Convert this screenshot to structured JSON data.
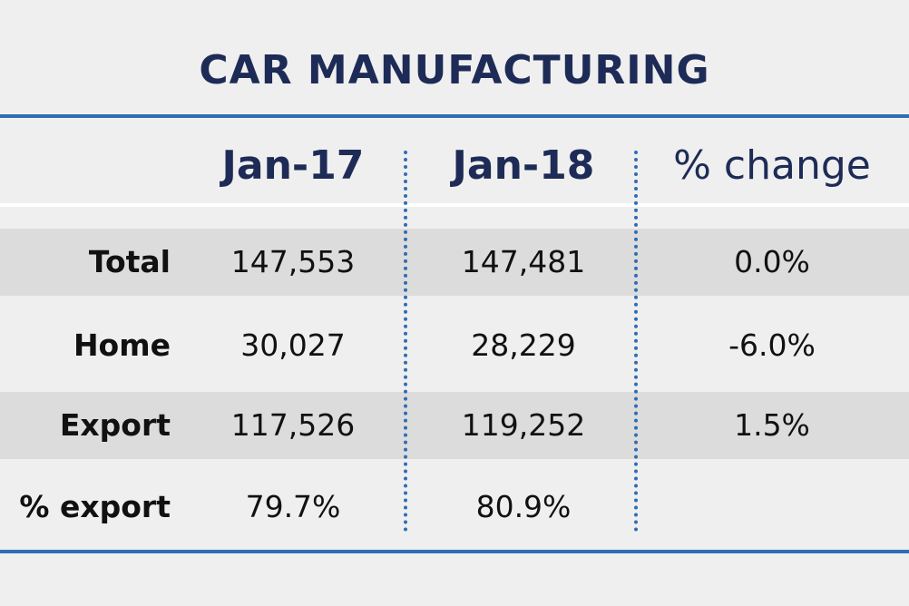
{
  "chart_data": {
    "type": "table",
    "title": "CAR MANUFACTURING",
    "columns": [
      "Jan-17",
      "Jan-18",
      "% change"
    ],
    "rows": [
      {
        "label": "Total",
        "values": [
          "147,553",
          "147,481",
          "0.0%"
        ]
      },
      {
        "label": "Home",
        "values": [
          "30,027",
          "28,229",
          "-6.0%"
        ]
      },
      {
        "label": "Export",
        "values": [
          "117,526",
          "119,252",
          "1.5%"
        ]
      },
      {
        "label": "% export",
        "values": [
          "79.7%",
          "80.9%",
          ""
        ]
      }
    ],
    "colors": {
      "title": "#1d2b56",
      "rule": "#2e6db5",
      "shaded_row": "#dcdcdc",
      "background": "#efefef"
    }
  }
}
